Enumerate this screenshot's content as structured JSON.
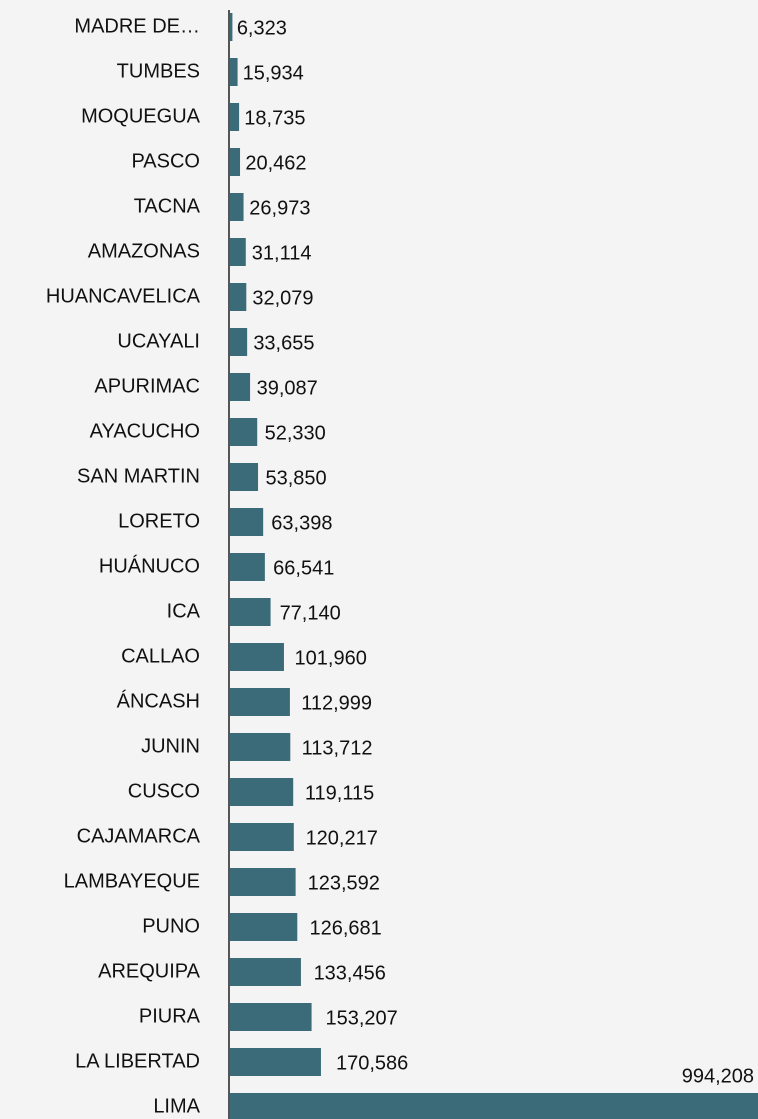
{
  "chart_data": {
    "type": "bar",
    "orientation": "horizontal",
    "color": "#3b6a78",
    "categories": [
      "MADRE DE…",
      "TUMBES",
      "MOQUEGUA",
      "PASCO",
      "TACNA",
      "AMAZONAS",
      "HUANCAVELICA",
      "UCAYALI",
      "APURIMAC",
      "AYACUCHO",
      "SAN MARTIN",
      "LORETO",
      "HUÁNUCO",
      "ICA",
      "CALLAO",
      "ÁNCASH",
      "JUNIN",
      "CUSCO",
      "CAJAMARCA",
      "LAMBAYEQUE",
      "PUNO",
      "AREQUIPA",
      "PIURA",
      "LA LIBERTAD",
      "LIMA"
    ],
    "values": [
      6323,
      15934,
      18735,
      20462,
      26973,
      31114,
      32079,
      33655,
      39087,
      52330,
      53850,
      63398,
      66541,
      77140,
      101960,
      112999,
      113712,
      119115,
      120217,
      123592,
      126681,
      133456,
      153207,
      170586,
      994208
    ],
    "value_labels": [
      "6,323",
      "15,934",
      "18,735",
      "20,462",
      "26,973",
      "31,114",
      "32,079",
      "33,655",
      "39,087",
      "52,330",
      "53,850",
      "63,398",
      "66,541",
      "77,140",
      "101,960",
      "112,999",
      "113,712",
      "119,115",
      "120,217",
      "123,592",
      "126,681",
      "133,456",
      "153,207",
      "170,586",
      "994,208"
    ]
  }
}
